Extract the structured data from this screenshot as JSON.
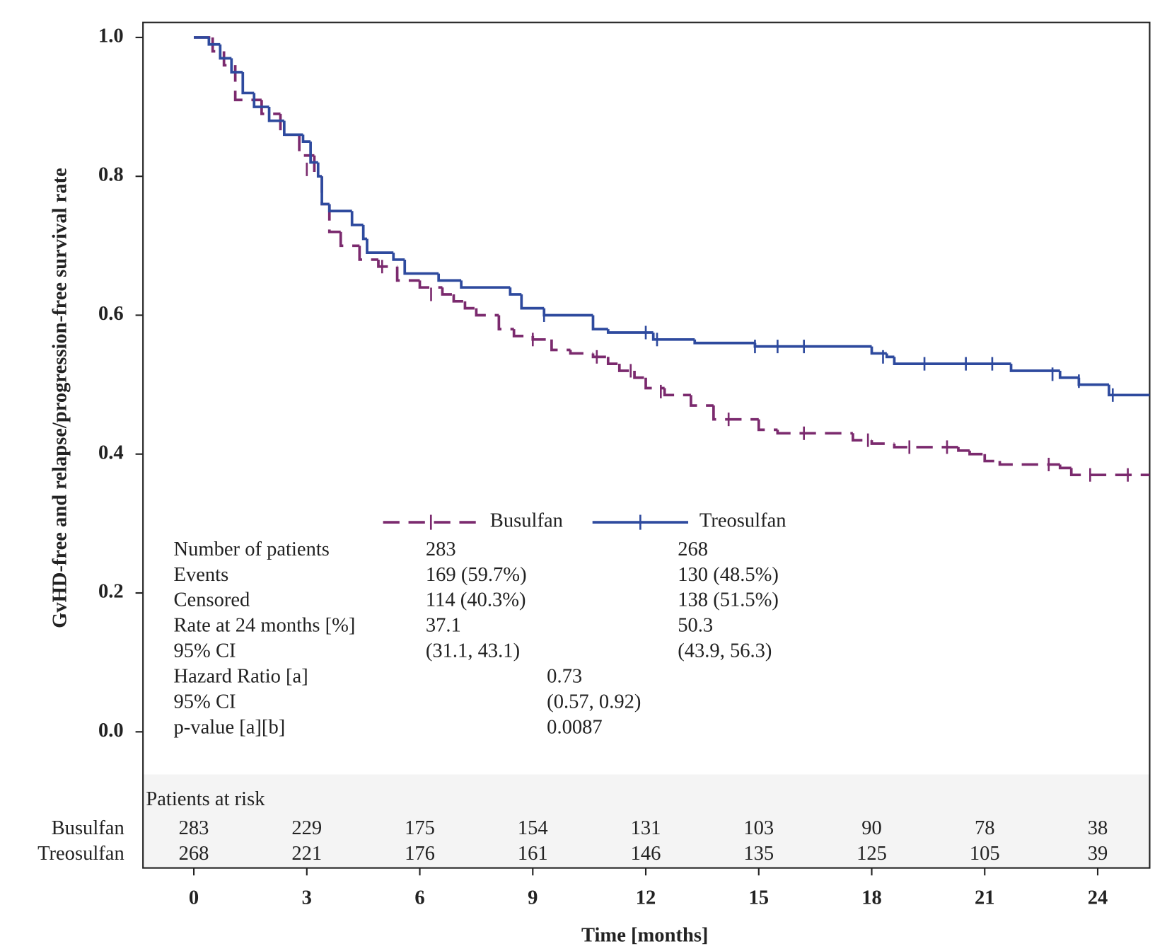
{
  "chart_data": {
    "type": "km",
    "y_label": "GvHD-free and relapse/progression-free survival rate",
    "x_label": "Time [months]",
    "xlim": [
      -1.35,
      25.38
    ],
    "ylim": [
      -0.196,
      1.0216
    ],
    "xticks": [
      0,
      3,
      6,
      9,
      12,
      15,
      18,
      21,
      24
    ],
    "yticks": [
      {
        "value": 0,
        "label": "0.0"
      },
      {
        "value": 0.2,
        "label": "0.2"
      },
      {
        "value": 0.4,
        "label": "0.4"
      },
      {
        "value": 0.6,
        "label": "0.6"
      },
      {
        "value": 0.8,
        "label": "0.8"
      },
      {
        "value": 1,
        "label": "1.0"
      }
    ],
    "series": [
      {
        "name": "Busulfan",
        "color": "#7b2a6e",
        "dashed": true,
        "x": [
          0,
          0.5,
          0.8,
          1.1,
          1.8,
          2.3,
          2.8,
          3.2,
          3.4,
          3.6,
          3.9,
          4.4,
          4.9,
          5.4,
          6.0,
          6.6,
          6.9,
          7.2,
          7.5,
          8.1,
          8.5,
          9.0,
          9.5,
          10.0,
          10.6,
          11.0,
          11.3,
          11.7,
          12.0,
          12.5,
          13.2,
          13.8,
          15.0,
          15.5,
          17.5,
          18.0,
          18.6,
          20.3,
          20.6,
          21.0,
          21.4,
          23.0,
          23.3,
          25.38
        ],
        "values": [
          1.0,
          0.98,
          0.96,
          0.91,
          0.89,
          0.86,
          0.83,
          0.8,
          0.76,
          0.72,
          0.7,
          0.68,
          0.67,
          0.65,
          0.64,
          0.63,
          0.62,
          0.61,
          0.6,
          0.58,
          0.57,
          0.565,
          0.55,
          0.545,
          0.54,
          0.53,
          0.52,
          0.51,
          0.495,
          0.485,
          0.47,
          0.45,
          0.435,
          0.43,
          0.42,
          0.415,
          0.41,
          0.405,
          0.4,
          0.39,
          0.385,
          0.38,
          0.37,
          0.37
        ],
        "censored": {
          "x": [
            3.0,
            5.0,
            6.3,
            9.0,
            10.7,
            11.6,
            12.4,
            14.2,
            16.2,
            17.9,
            19.0,
            20.0,
            22.7,
            23.8,
            24.8
          ],
          "values": [
            0.81,
            0.67,
            0.63,
            0.565,
            0.54,
            0.52,
            0.49,
            0.45,
            0.43,
            0.42,
            0.41,
            0.41,
            0.385,
            0.37,
            0.37
          ]
        }
      },
      {
        "name": "Treosulfan",
        "color": "#2e4a9e",
        "dashed": false,
        "x": [
          0,
          0.4,
          0.7,
          1.0,
          1.3,
          1.6,
          2.0,
          2.4,
          2.9,
          3.1,
          3.3,
          3.4,
          3.6,
          4.2,
          4.5,
          4.6,
          5.3,
          5.6,
          6.5,
          7.1,
          8.4,
          8.7,
          9.3,
          10.6,
          11.0,
          12.2,
          13.3,
          14.9,
          18.0,
          18.4,
          18.6,
          21.7,
          23.0,
          23.5,
          24.3,
          25.38
        ],
        "values": [
          1.0,
          0.99,
          0.97,
          0.95,
          0.92,
          0.9,
          0.88,
          0.86,
          0.85,
          0.82,
          0.8,
          0.76,
          0.75,
          0.73,
          0.71,
          0.69,
          0.68,
          0.66,
          0.65,
          0.64,
          0.63,
          0.61,
          0.6,
          0.58,
          0.575,
          0.565,
          0.56,
          0.555,
          0.545,
          0.54,
          0.53,
          0.52,
          0.51,
          0.5,
          0.485,
          0.485
        ],
        "censored": {
          "x": [
            9.3,
            12.0,
            12.3,
            14.9,
            15.5,
            16.2,
            18.3,
            19.4,
            20.5,
            21.2,
            22.8,
            23.5,
            24.4
          ],
          "values": [
            0.6,
            0.575,
            0.565,
            0.555,
            0.555,
            0.555,
            0.54,
            0.53,
            0.53,
            0.53,
            0.515,
            0.505,
            0.485
          ]
        }
      }
    ],
    "summary_table": {
      "group_rows": [
        [
          "Number of patients",
          "283",
          "268"
        ],
        [
          "Events",
          "169 (59.7%)",
          "130 (48.5%)"
        ],
        [
          "Censored",
          "114 (40.3%)",
          "138 (51.5%)"
        ],
        [
          "Rate at 24 months [%]",
          "37.1",
          "50.3"
        ],
        [
          "95% CI",
          "(31.1, 43.1)",
          "(43.9, 56.3)"
        ]
      ],
      "comparison_rows": [
        [
          "Hazard Ratio [a]",
          "0.73"
        ],
        [
          "95% CI",
          "(0.57, 0.92)"
        ],
        [
          "p-value [a][b]",
          "0.0087"
        ]
      ]
    },
    "risk_table": {
      "title": "Patients at risk",
      "rows": [
        {
          "name": "Busulfan",
          "values": [
            283,
            229,
            175,
            154,
            131,
            103,
            90,
            78,
            38
          ]
        },
        {
          "name": "Treosulfan",
          "values": [
            268,
            221,
            176,
            161,
            146,
            135,
            125,
            105,
            39
          ]
        }
      ]
    }
  }
}
